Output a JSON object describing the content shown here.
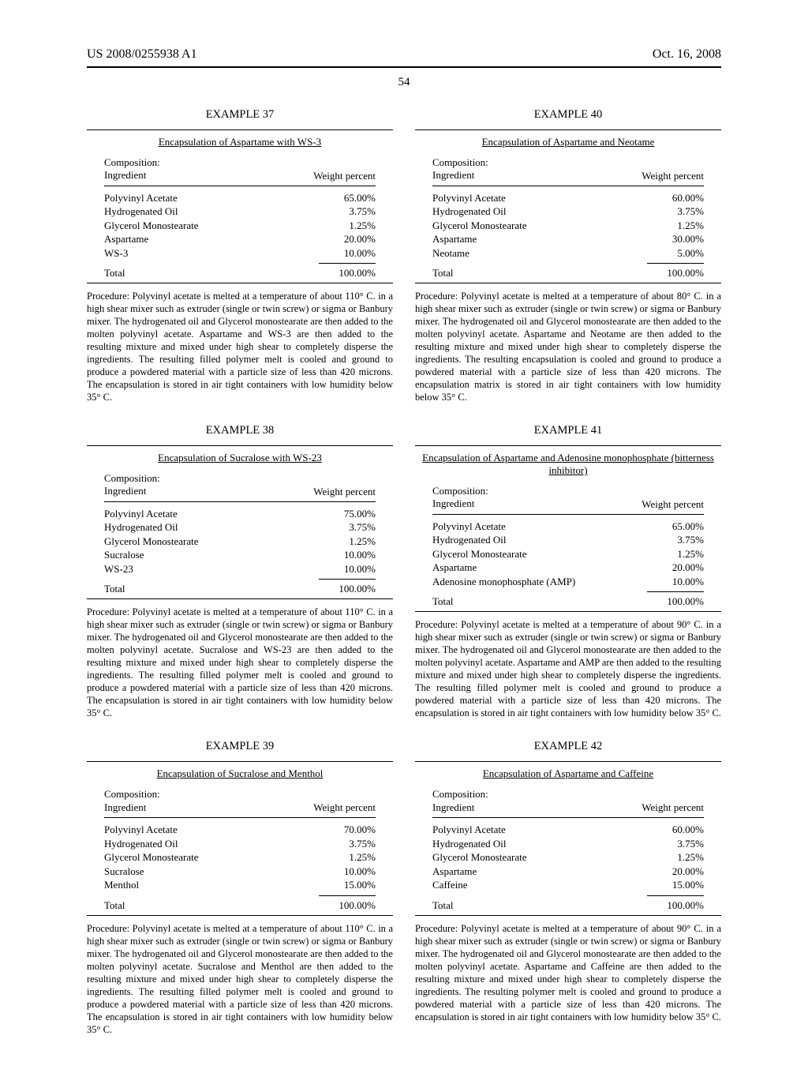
{
  "header": {
    "left": "US 2008/0255938 A1",
    "right": "Oct. 16, 2008"
  },
  "page_number": "54",
  "labels": {
    "composition": "Composition:",
    "ingredient": "Ingredient",
    "weight_percent": "Weight percent",
    "total": "Total"
  },
  "examples": [
    {
      "id": "ex37",
      "heading": "EXAMPLE 37",
      "title": "Encapsulation of Aspartame with WS-3",
      "rows": [
        {
          "name": "Polyvinyl Acetate",
          "value": "65.00%"
        },
        {
          "name": "Hydrogenated Oil",
          "value": "3.75%"
        },
        {
          "name": "Glycerol Monostearate",
          "value": "1.25%"
        },
        {
          "name": "Aspartame",
          "value": "20.00%"
        },
        {
          "name": "WS-3",
          "value": "10.00%"
        }
      ],
      "total": "100.00%",
      "procedure": "Procedure: Polyvinyl acetate is melted at a temperature of about 110° C. in a high shear mixer such as extruder (single or twin screw) or sigma or Banbury mixer. The hydrogenated oil and Glycerol monostearate are then added to the molten polyvinyl acetate. Aspartame and WS-3 are then added to the resulting mixture and mixed under high shear to completely disperse the ingredients. The resulting filled polymer melt is cooled and ground to produce a powdered material with a particle size of less than 420 microns. The encapsulation is stored in air tight containers with low humidity below 35° C."
    },
    {
      "id": "ex38",
      "heading": "EXAMPLE 38",
      "title": "Encapsulation of Sucralose with WS-23",
      "rows": [
        {
          "name": "Polyvinyl Acetate",
          "value": "75.00%"
        },
        {
          "name": "Hydrogenated Oil",
          "value": "3.75%"
        },
        {
          "name": "Glycerol Monostearate",
          "value": "1.25%"
        },
        {
          "name": "Sucralose",
          "value": "10.00%"
        },
        {
          "name": "WS-23",
          "value": "10.00%"
        }
      ],
      "total": "100.00%",
      "procedure": "Procedure: Polyvinyl acetate is melted at a temperature of about 110° C. in a high shear mixer such as extruder (single or twin screw) or sigma or Banbury mixer. The hydrogenated oil and Glycerol monostearate are then added to the molten polyvinyl acetate. Sucralose and WS-23 are then added to the resulting mixture and mixed under high shear to completely disperse the ingredients. The resulting filled polymer melt is cooled and ground to produce a powdered material with a particle size of less than 420 microns. The encapsulation is stored in air tight containers with low humidity below 35° C."
    },
    {
      "id": "ex39",
      "heading": "EXAMPLE 39",
      "title": "Encapsulation of Sucralose and Menthol",
      "rows": [
        {
          "name": "Polyvinyl Acetate",
          "value": "70.00%"
        },
        {
          "name": "Hydrogenated Oil",
          "value": "3.75%"
        },
        {
          "name": "Glycerol Monostearate",
          "value": "1.25%"
        },
        {
          "name": "Sucralose",
          "value": "10.00%"
        },
        {
          "name": "Menthol",
          "value": "15.00%"
        }
      ],
      "total": "100.00%",
      "procedure": "Procedure: Polyvinyl acetate is melted at a temperature of about 110° C. in a high shear mixer such as extruder (single or twin screw) or sigma or Banbury mixer. The hydrogenated oil and Glycerol monostearate are then added to the molten polyvinyl acetate. Sucralose and Menthol are then added to the resulting mixture and mixed under high shear to completely disperse the ingredients. The resulting filled polymer melt is cooled and ground to produce a powdered material with a particle size of less than 420 microns. The encapsulation is stored in air tight containers with low humidity below 35° C."
    },
    {
      "id": "ex40",
      "heading": "EXAMPLE 40",
      "title": "Encapsulation of Aspartame and Neotame",
      "rows": [
        {
          "name": "Polyvinyl Acetate",
          "value": "60.00%"
        },
        {
          "name": "Hydrogenated Oil",
          "value": "3.75%"
        },
        {
          "name": "Glycerol Monostearate",
          "value": "1.25%"
        },
        {
          "name": "Aspartame",
          "value": "30.00%"
        },
        {
          "name": "Neotame",
          "value": "5.00%"
        }
      ],
      "total": "100.00%",
      "procedure": "Procedure: Polyvinyl acetate is melted at a temperature of about 80° C. in a high shear mixer such as extruder (single or twin screw) or sigma or Banbury mixer. The hydrogenated oil and Glycerol monostearate are then added to the molten polyvinyl acetate. Aspartame and Neotame are then added to the resulting mixture and mixed under high shear to completely disperse the ingredients. The resulting encapsulation is cooled and ground to produce a powdered material with a particle size of less than 420 microns. The encapsulation matrix is stored in air tight containers with low humidity below 35° C."
    },
    {
      "id": "ex41",
      "heading": "EXAMPLE 41",
      "title": "Encapsulation of Aspartame and Adenosine monophosphate (bitterness inhibitor)",
      "rows": [
        {
          "name": "Polyvinyl Acetate",
          "value": "65.00%"
        },
        {
          "name": "Hydrogenated Oil",
          "value": "3.75%"
        },
        {
          "name": "Glycerol Monostearate",
          "value": "1.25%"
        },
        {
          "name": "Aspartame",
          "value": "20.00%"
        },
        {
          "name": "Adenosine monophosphate (AMP)",
          "value": "10.00%"
        }
      ],
      "total": "100.00%",
      "procedure": "Procedure: Polyvinyl acetate is melted at a temperature of about 90° C. in a high shear mixer such as extruder (single or twin screw) or sigma or Banbury mixer. The hydrogenated oil and Glycerol monostearate are then added to the molten polyvinyl acetate. Aspartame and AMP are then added to the resulting mixture and mixed under high shear to completely disperse the ingredients. The resulting filled polymer melt is cooled and ground to produce a powdered material with a particle size of less than 420 microns. The encapsulation is stored in air tight containers with low humidity below 35° C."
    },
    {
      "id": "ex42",
      "heading": "EXAMPLE 42",
      "title": "Encapsulation of Aspartame and Caffeine",
      "rows": [
        {
          "name": "Polyvinyl Acetate",
          "value": "60.00%"
        },
        {
          "name": "Hydrogenated Oil",
          "value": "3.75%"
        },
        {
          "name": "Glycerol Monostearate",
          "value": "1.25%"
        },
        {
          "name": "Aspartame",
          "value": "20.00%"
        },
        {
          "name": "Caffeine",
          "value": "15.00%"
        }
      ],
      "total": "100.00%",
      "procedure": "Procedure: Polyvinyl acetate is melted at a temperature of about 90° C. in a high shear mixer such as extruder (single or twin screw) or sigma or Banbury mixer. The hydrogenated oil and Glycerol monostearate are then added to the molten polyvinyl acetate. Aspartame and Caffeine are then added to the resulting mixture and mixed under high shear to completely disperse the ingredients. The resulting polymer melt is cooled and ground to produce a powdered material with a particle size of less than 420 microns. The encapsulation is stored in air tight containers with low humidity below 35° C."
    }
  ]
}
